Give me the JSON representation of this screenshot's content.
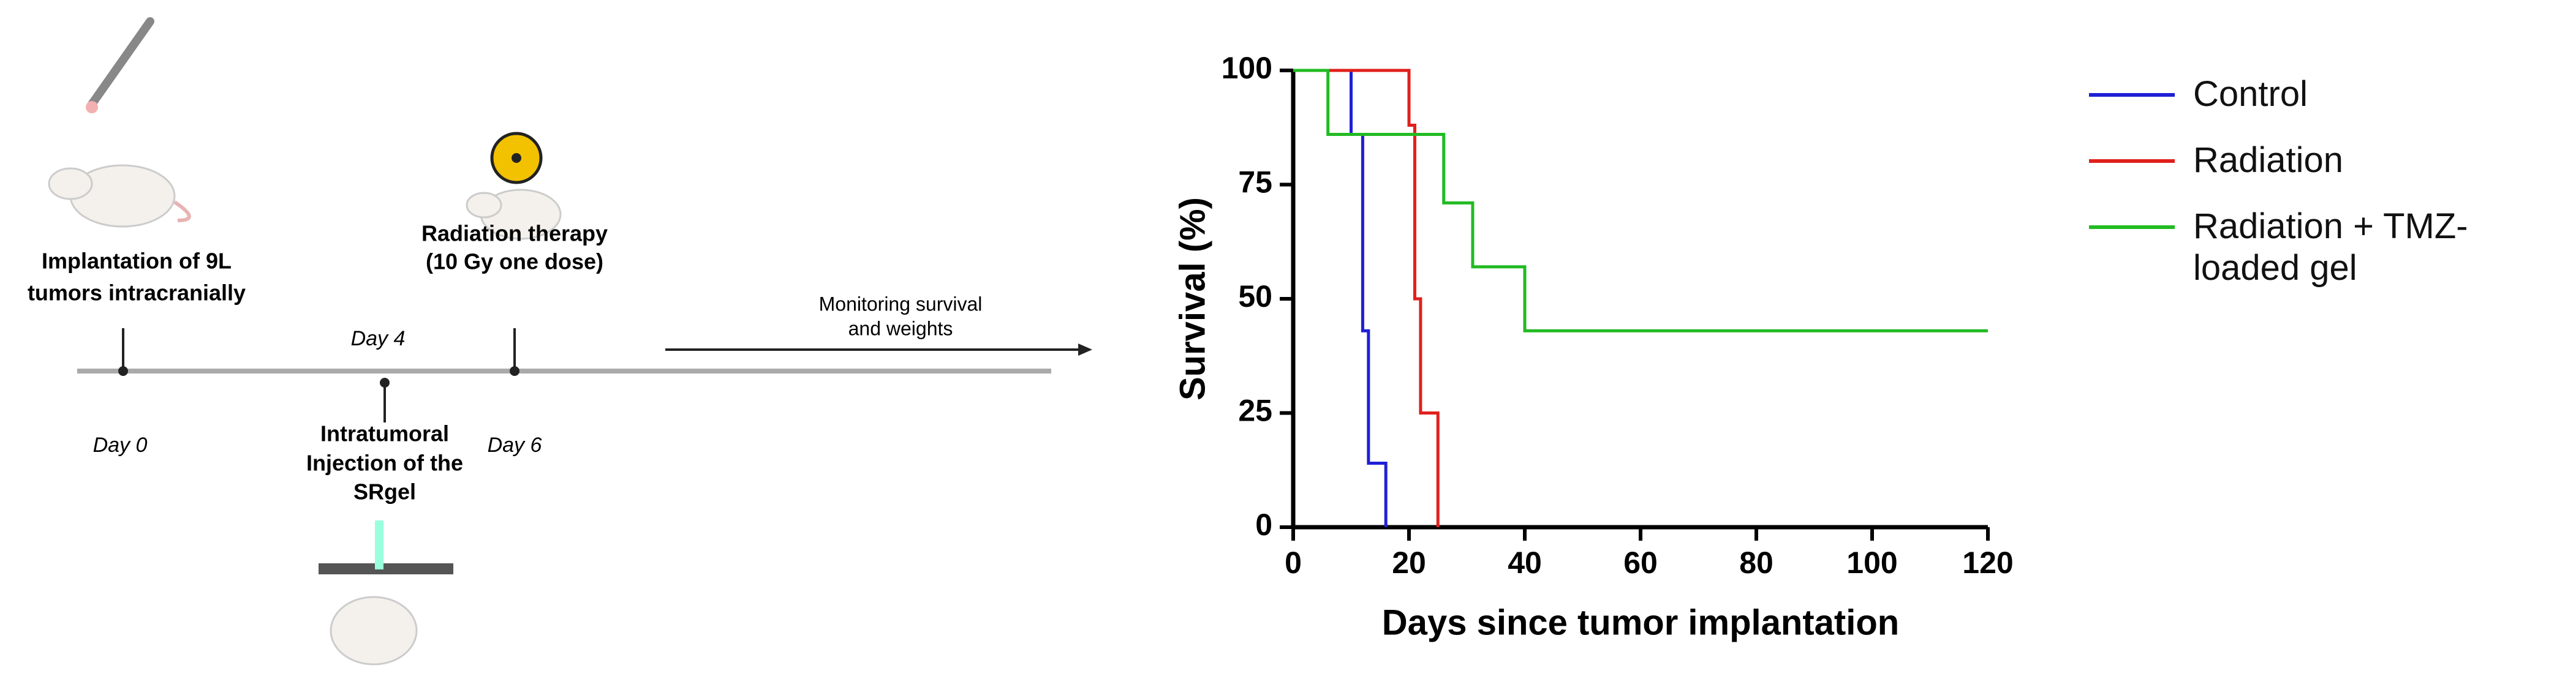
{
  "diagram": {
    "implantation": [
      "Implantation of 9L",
      "tumors intracranially"
    ],
    "day0": "Day 0",
    "day4": "Day 4",
    "injection": [
      "Intratumoral",
      "Injection of the",
      "SRgel"
    ],
    "radiation": [
      "Radiation therapy",
      "(10 Gy one dose)"
    ],
    "day6": "Day 6",
    "monitoring": [
      "Monitoring survival",
      "and weights"
    ]
  },
  "chart_data": {
    "type": "step",
    "xlabel": "Days since tumor implantation",
    "ylabel": "Survival (%)",
    "xlim": [
      0,
      120
    ],
    "xticks": [
      0,
      20,
      40,
      60,
      80,
      100,
      120
    ],
    "ylim": [
      0,
      100
    ],
    "yticks": [
      0,
      25,
      50,
      75,
      100
    ],
    "series": [
      {
        "name": "Control",
        "color": "#1f1fd6",
        "x": [
          0,
          10,
          12,
          13,
          16
        ],
        "values": [
          100,
          86,
          43,
          14,
          0
        ]
      },
      {
        "name": "Radiation",
        "color": "#e0201c",
        "x": [
          0,
          20,
          21,
          22,
          25
        ],
        "values": [
          100,
          88,
          50,
          25,
          0
        ]
      },
      {
        "name": "Radiation + TMZ-loaded gel",
        "color": "#22bb22",
        "x": [
          0,
          6,
          26,
          31,
          40,
          120
        ],
        "values": [
          100,
          86,
          71,
          57,
          43,
          43
        ]
      }
    ]
  }
}
